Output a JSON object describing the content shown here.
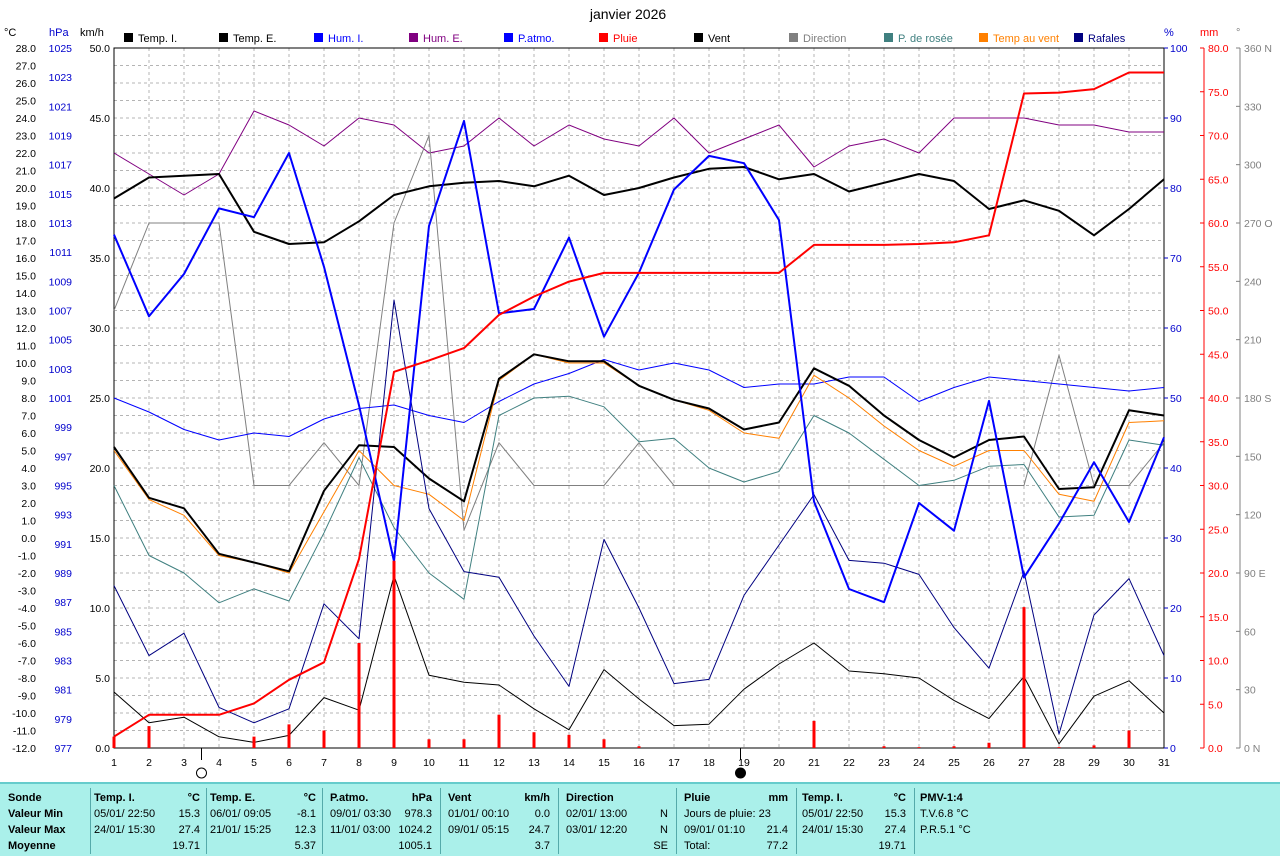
{
  "title": "janvier 2026",
  "axis_units": {
    "temp": "°C",
    "press": "hPa",
    "wind": "km/h",
    "hum": "%",
    "rain": "mm",
    "dir": "°"
  },
  "legend": [
    {
      "label": "Temp. I.",
      "color": "#000000"
    },
    {
      "label": "Temp. E.",
      "color": "#000000"
    },
    {
      "label": "Hum. I.",
      "color": "#0000ff"
    },
    {
      "label": "Hum. E.",
      "color": "#800080"
    },
    {
      "label": "P.atmo.",
      "color": "#0000ff"
    },
    {
      "label": "Pluie",
      "color": "#ff0000"
    },
    {
      "label": "Vent",
      "color": "#000000"
    },
    {
      "label": "Direction",
      "color": "#808080"
    },
    {
      "label": "P. de rosée",
      "color": "#408080"
    },
    {
      "label": "Temp au vent",
      "color": "#ff8000"
    },
    {
      "label": "Rafales",
      "color": "#000080"
    }
  ],
  "chart_data": {
    "type": "line",
    "title": "janvier 2026",
    "x": [
      1,
      2,
      3,
      4,
      5,
      6,
      7,
      8,
      9,
      10,
      11,
      12,
      13,
      14,
      15,
      16,
      17,
      18,
      19,
      20,
      21,
      22,
      23,
      24,
      25,
      26,
      27,
      28,
      29,
      30,
      31
    ],
    "xlim": [
      1,
      31
    ],
    "axes": {
      "temp": {
        "unit": "°C",
        "range": [
          -12,
          28
        ],
        "ticks": [
          "28.0",
          "27.0",
          "26.0",
          "25.0",
          "24.0",
          "23.0",
          "22.0",
          "21.0",
          "20.0",
          "19.0",
          "18.0",
          "17.0",
          "16.0",
          "15.0",
          "14.0",
          "13.0",
          "12.0",
          "11.0",
          "10.0",
          "9.0",
          "8.0",
          "7.0",
          "6.0",
          "5.0",
          "4.0",
          "3.0",
          "2.0",
          "1.0",
          "0.0",
          "-1.0",
          "-2.0",
          "-3.0",
          "-4.0",
          "-5.0",
          "-6.0",
          "-7.0",
          "-8.0",
          "-9.0",
          "-10.0",
          "-11.0",
          "-12.0"
        ]
      },
      "press": {
        "unit": "hPa",
        "range": [
          977,
          1025
        ],
        "ticks": [
          "1025",
          "1023",
          "1021",
          "1019",
          "1017",
          "1015",
          "1013",
          "1011",
          "1009",
          "1007",
          "1005",
          "1003",
          "1001",
          "999",
          "997",
          "995",
          "993",
          "991",
          "989",
          "987",
          "985",
          "983",
          "981",
          "979",
          "977"
        ]
      },
      "wind": {
        "unit": "km/h",
        "range": [
          0,
          50
        ],
        "ticks": [
          "50.0",
          "45.0",
          "40.0",
          "35.0",
          "30.0",
          "25.0",
          "20.0",
          "15.0",
          "10.0",
          "5.0",
          "0.0"
        ]
      },
      "hum": {
        "unit": "%",
        "range": [
          0,
          100
        ],
        "ticks": [
          "100",
          "90",
          "80",
          "70",
          "60",
          "50",
          "40",
          "30",
          "20",
          "10",
          "0"
        ]
      },
      "rain": {
        "unit": "mm",
        "range": [
          0,
          80
        ],
        "ticks": [
          "80.0",
          "75.0",
          "70.0",
          "65.0",
          "60.0",
          "55.0",
          "50.0",
          "45.0",
          "40.0",
          "35.0",
          "30.0",
          "25.0",
          "20.0",
          "15.0",
          "10.0",
          "5.0",
          "0.0"
        ]
      },
      "dir": {
        "unit": "°",
        "range": [
          0,
          360
        ],
        "ticks": [
          {
            "v": 360,
            "t": "360 N"
          },
          {
            "v": 330,
            "t": "330"
          },
          {
            "v": 300,
            "t": "300"
          },
          {
            "v": 270,
            "t": "270 O"
          },
          {
            "v": 240,
            "t": "240"
          },
          {
            "v": 210,
            "t": "210"
          },
          {
            "v": 180,
            "t": "180 S"
          },
          {
            "v": 150,
            "t": "150"
          },
          {
            "v": 120,
            "t": "120"
          },
          {
            "v": 90,
            "t": "90 E"
          },
          {
            "v": 60,
            "t": "60"
          },
          {
            "v": 30,
            "t": "30"
          },
          {
            "v": 0,
            "t": "0 N"
          }
        ]
      }
    },
    "grid": true,
    "legend_position": "top",
    "moon_phases": [
      {
        "x": 3.5,
        "phase": "full"
      },
      {
        "x": 18.9,
        "phase": "new"
      }
    ],
    "series": [
      {
        "name": "Hum. E.",
        "axis": "hum",
        "color": "#800080",
        "values": [
          85,
          82,
          79,
          82,
          91,
          89,
          86,
          90,
          89,
          85,
          86,
          90,
          86,
          89,
          87,
          86,
          90,
          85,
          87,
          89,
          83,
          86,
          87,
          85,
          90,
          90,
          90,
          89,
          89,
          88,
          88
        ]
      },
      {
        "name": "Direction",
        "axis": "dir",
        "color": "#808080",
        "values": [
          225,
          270,
          270,
          270,
          135,
          135,
          157,
          135,
          270,
          315,
          112,
          157,
          135,
          135,
          135,
          157,
          135,
          135,
          135,
          135,
          135,
          135,
          135,
          135,
          135,
          135,
          135,
          202,
          135,
          135,
          157
        ]
      },
      {
        "name": "Hum. I.",
        "axis": "hum",
        "color": "#0000ff",
        "values": [
          50,
          48,
          45.5,
          44,
          45,
          44.5,
          47,
          48.5,
          49,
          47.5,
          46.5,
          49.5,
          52,
          53.5,
          55.5,
          54,
          55,
          54,
          51.5,
          52,
          52,
          53,
          53,
          49.5,
          51.5,
          53,
          52.5,
          52,
          51.5,
          51,
          51.5
        ]
      },
      {
        "name": "P. de rosée",
        "axis": "temp",
        "color": "#408080",
        "values": [
          3.0,
          -1.0,
          -2.0,
          -3.7,
          -2.9,
          -3.6,
          0.3,
          4.6,
          0.6,
          -2.0,
          -3.5,
          7.0,
          8.0,
          8.1,
          7.5,
          5.5,
          5.7,
          4.0,
          3.2,
          3.8,
          7.0,
          6.0,
          4.5,
          3.0,
          3.3,
          4.1,
          4.2,
          1.2,
          1.3,
          5.6,
          5.3
        ]
      },
      {
        "name": "Temp au vent",
        "axis": "temp",
        "color": "#ff8000",
        "values": [
          5.0,
          2.2,
          1.3,
          -1.0,
          -1.4,
          -2.0,
          1.5,
          5.0,
          3.0,
          2.5,
          1.0,
          9.0,
          10.5,
          10.0,
          10.0,
          8.7,
          7.9,
          7.3,
          6.0,
          5.7,
          9.3,
          8.0,
          6.4,
          5.0,
          4.1,
          5.0,
          5.0,
          2.5,
          2.1,
          6.6,
          6.7
        ]
      },
      {
        "name": "Temp. I.",
        "axis": "temp",
        "color": "#000000",
        "values": [
          19.4,
          20.6,
          20.7,
          20.8,
          17.5,
          16.8,
          16.9,
          18.1,
          19.6,
          20.1,
          20.3,
          20.4,
          20.1,
          20.7,
          19.6,
          20.0,
          20.6,
          21.1,
          21.2,
          20.5,
          20.8,
          19.8,
          20.3,
          20.8,
          20.4,
          18.8,
          19.3,
          18.7,
          17.3,
          18.8,
          20.5
        ]
      },
      {
        "name": "Temp. E.",
        "axis": "temp",
        "color": "#000000",
        "values": [
          5.2,
          2.3,
          1.7,
          -0.9,
          -1.4,
          -1.9,
          2.7,
          5.3,
          5.2,
          3.4,
          2.1,
          9.1,
          10.5,
          10.1,
          10.1,
          8.7,
          7.9,
          7.4,
          6.2,
          6.6,
          9.7,
          8.7,
          7.0,
          5.6,
          4.6,
          5.6,
          5.8,
          2.8,
          2.9,
          7.3,
          7.0
        ]
      },
      {
        "name": "Vent",
        "axis": "wind",
        "color": "#000000",
        "values": [
          4.0,
          1.8,
          2.2,
          0.8,
          0.4,
          0.9,
          3.6,
          2.7,
          12.3,
          5.2,
          4.7,
          4.5,
          2.8,
          1.3,
          5.6,
          3.5,
          1.6,
          1.7,
          4.2,
          6.0,
          7.5,
          5.5,
          5.3,
          5.0,
          3.4,
          2.1,
          5.1,
          0.3,
          3.7,
          4.8,
          2.5
        ]
      },
      {
        "name": "Rafales",
        "axis": "wind",
        "color": "#000080",
        "values": [
          11.6,
          6.6,
          8.2,
          2.9,
          1.8,
          2.8,
          10.3,
          7.8,
          32.0,
          17.1,
          12.6,
          12.2,
          8.0,
          4.4,
          14.9,
          10.0,
          4.6,
          4.9,
          10.9,
          14.5,
          18.1,
          13.4,
          13.2,
          12.4,
          8.6,
          5.7,
          12.6,
          1.0,
          9.5,
          12.1,
          6.6
        ]
      },
      {
        "name": "P.atmo.",
        "axis": "press",
        "color": "#0000ff",
        "values": [
          1012.2,
          1006.6,
          1009.5,
          1014.0,
          1013.4,
          1017.8,
          1010.0,
          1000.5,
          989.8,
          1012.8,
          1020.0,
          1006.8,
          1007.1,
          1012.0,
          1005.2,
          1009.6,
          1015.3,
          1017.6,
          1017.1,
          1013.2,
          993.9,
          987.9,
          987.0,
          993.8,
          991.9,
          1000.8,
          988.7,
          992.4,
          996.6,
          992.5,
          998.3
        ]
      },
      {
        "name": "Pluie",
        "axis": "rain",
        "color": "#ff0000",
        "values": [
          1.3,
          3.8,
          3.8,
          3.8,
          5.1,
          7.8,
          9.8,
          21.6,
          43.0,
          44.3,
          45.7,
          49.5,
          51.6,
          53.3,
          54.3,
          54.3,
          54.3,
          54.3,
          54.3,
          54.3,
          57.5,
          57.5,
          57.5,
          57.6,
          57.8,
          58.6,
          74.8,
          74.9,
          75.3,
          77.2,
          77.2
        ]
      },
      {
        "name": "Pluie (jour)",
        "axis": "rain",
        "kind": "bar",
        "color": "#ff0000",
        "values": [
          1.3,
          2.5,
          0,
          0,
          1.3,
          2.7,
          2.0,
          12.0,
          21.4,
          1.0,
          1.0,
          3.8,
          1.8,
          1.5,
          1.0,
          0.2,
          0,
          0,
          0,
          0,
          3.1,
          0,
          0.2,
          0.1,
          0.2,
          0.6,
          16.1,
          0.1,
          0.3,
          2.0,
          0
        ]
      }
    ]
  },
  "summary": {
    "sonde": {
      "header": "Sonde",
      "rows": [
        "Valeur Min",
        "Valeur Max",
        "Moyenne"
      ]
    },
    "temp_i": {
      "header": "Temp. I.",
      "unit": "°C",
      "min_date": "05/01/ 22:50",
      "min": "15.3",
      "max_date": "24/01/ 15:30",
      "max": "27.4",
      "avg": "19.71"
    },
    "temp_e": {
      "header": "Temp. E.",
      "unit": "°C",
      "min_date": "06/01/ 09:05",
      "min": "-8.1",
      "max_date": "21/01/ 15:25",
      "max": "12.3",
      "avg": "5.37"
    },
    "press": {
      "header": "P.atmo.",
      "unit": "hPa",
      "min_date": "09/01/ 03:30",
      "min": "978.3",
      "max_date": "11/01/ 03:00",
      "max": "1024.2",
      "avg": "1005.1"
    },
    "wind": {
      "header": "Vent",
      "unit": "km/h",
      "min_date": "01/01/ 00:10",
      "min": "0.0",
      "max_date": "09/01/ 05:15",
      "max": "24.7",
      "avg": "3.7"
    },
    "dir": {
      "header": "Direction",
      "min_date": "02/01/ 13:00",
      "min": "N",
      "max_date": "03/01/ 12:20",
      "max": "N",
      "avg": "SE"
    },
    "rain": {
      "header": "Pluie",
      "unit": "mm",
      "days": "Jours de pluie: 23",
      "max_date": "09/01/ 01:10",
      "max": "21.4",
      "total_label": "Total:",
      "total": "77.2"
    },
    "temp_i2": {
      "header": "Temp. I.",
      "unit": "°C",
      "min_date": "05/01/ 22:50",
      "min": "15.3",
      "max_date": "24/01/ 15:30",
      "max": "27.4",
      "avg": "19.71"
    },
    "pmv": {
      "header": "PMV-1:4",
      "tv": "T.V.6.8 °C",
      "pr": "P.R.5.1 °C"
    }
  }
}
